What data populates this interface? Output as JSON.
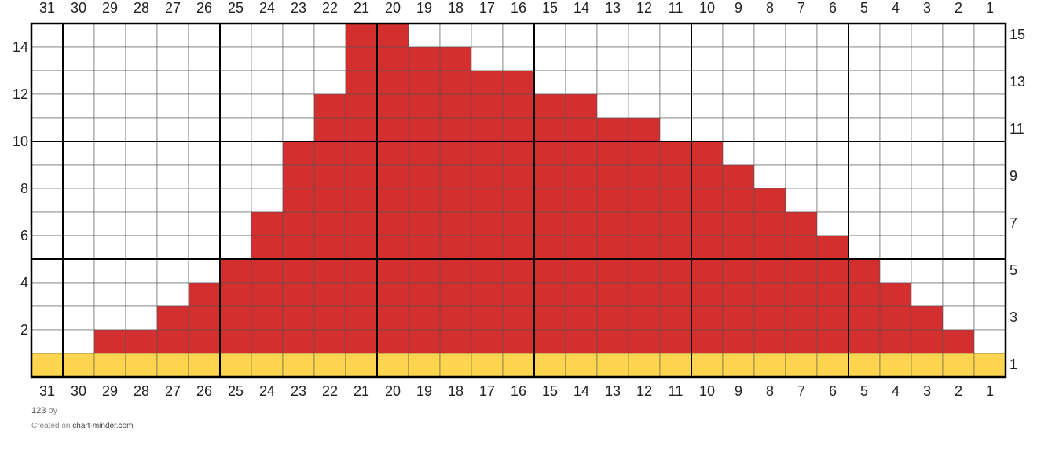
{
  "columns": [
    31,
    30,
    29,
    28,
    27,
    26,
    25,
    24,
    23,
    22,
    21,
    20,
    19,
    18,
    17,
    16,
    15,
    14,
    13,
    12,
    11,
    10,
    9,
    8,
    7,
    6,
    5,
    4,
    3,
    2,
    1
  ],
  "rows": [
    1,
    2,
    3,
    4,
    5,
    6,
    7,
    8,
    9,
    10,
    11,
    12,
    13,
    14,
    15
  ],
  "colors": {
    ".": "#ffffff",
    "r": "#d32f2f",
    "y": "#fdd54f"
  },
  "cells": [
    "..........rr...................",
    "..........rrrr.................",
    "..........rrrrrr...............",
    ".........rrrrrrrrr.............",
    ".........rrrrrrrrrrr...........",
    "........rrrrrrrrrrrrrr.........",
    "........rrrrrrrrrrrrrrr........",
    "........rrrrrrrrrrrrrrrr.......",
    ".......rrrrrrrrrrrrrrrrrr......",
    ".......rrrrrrrrrrrrrrrrrrr.....",
    "......rrrrrrrrrrrrrrrrrrrrr....",
    ".....rrrrrrrrrrrrrrrrrrrrrrr...",
    "....rrrrrrrrrrrrrrrrrrrrrrrrr..",
    "..rrrrrrrrrrrrrrrrrrrrrrrrrrrr.",
    "yyyyyyyyyyyyyyyyyyyyyyyyyyyyyyy"
  ],
  "footer": {
    "name": "123",
    "by": "by",
    "created": "Created on",
    "site": "chart-minder.com"
  }
}
